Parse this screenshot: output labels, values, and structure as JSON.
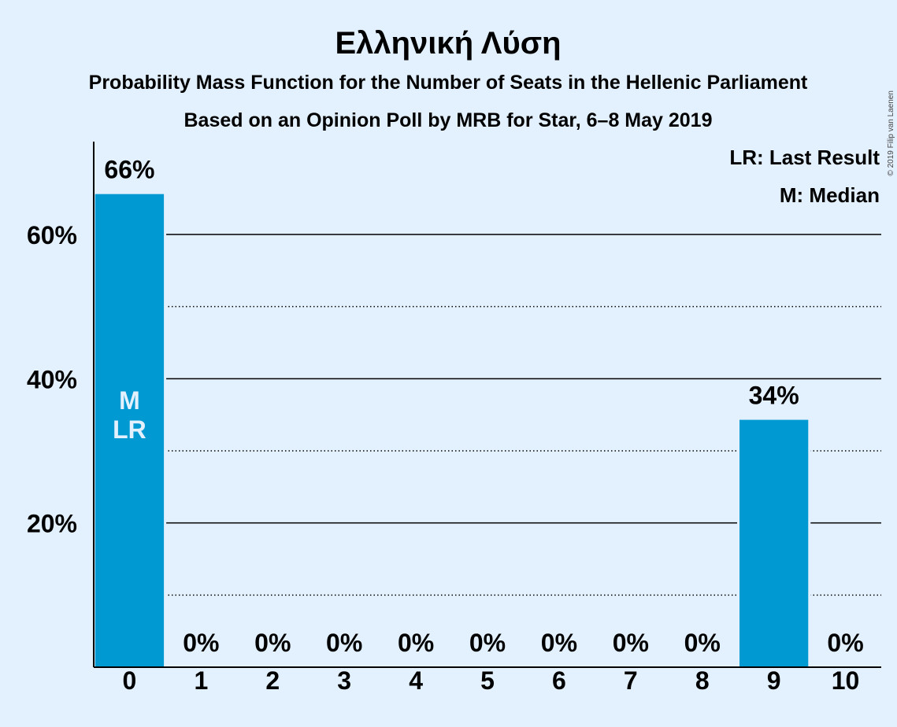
{
  "copyright": "© 2019 Filip van Laenen",
  "legend": {
    "last_result": "LR: Last Result",
    "median": "M: Median"
  },
  "chart_data": {
    "type": "bar",
    "title": "Ελληνική Λύση",
    "subtitle": "Probability Mass Function for the Number of Seats in the Hellenic Parliament",
    "subtitle2": "Based on an Opinion Poll by MRB for Star, 6–8 May 2019",
    "categories": [
      "0",
      "1",
      "2",
      "3",
      "4",
      "5",
      "6",
      "7",
      "8",
      "9",
      "10"
    ],
    "values": [
      65.6,
      0,
      0,
      0,
      0,
      0,
      0,
      0,
      0,
      34.3,
      0
    ],
    "value_labels": [
      "66%",
      "0%",
      "0%",
      "0%",
      "0%",
      "0%",
      "0%",
      "0%",
      "0%",
      "34%",
      "0%"
    ],
    "bar_annotations": [
      {
        "index": 0,
        "lines": [
          "M",
          "LR"
        ]
      }
    ],
    "yticks": [
      20,
      40,
      60
    ],
    "ytick_labels": [
      "20%",
      "40%",
      "60%"
    ],
    "minor_gridlines": [
      10,
      30,
      50
    ],
    "ylim": [
      0,
      72
    ],
    "bar_color": "#0099d2",
    "background_color": "#e3f0fd",
    "grid": true,
    "legend_position": "top-right"
  }
}
